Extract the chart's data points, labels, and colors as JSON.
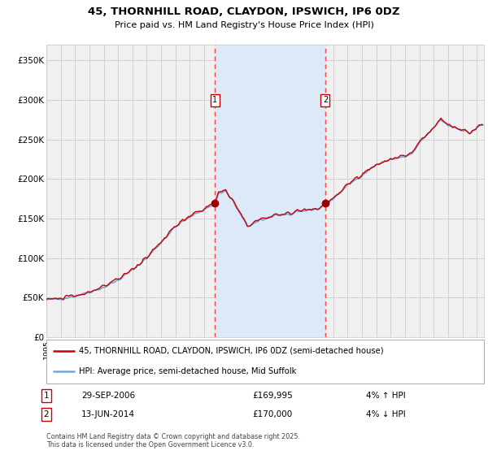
{
  "title": "45, THORNHILL ROAD, CLAYDON, IPSWICH, IP6 0DZ",
  "subtitle": "Price paid vs. HM Land Registry's House Price Index (HPI)",
  "legend_line1": "45, THORNHILL ROAD, CLAYDON, IPSWICH, IP6 0DZ (semi-detached house)",
  "legend_line2": "HPI: Average price, semi-detached house, Mid Suffolk",
  "footnote": "Contains HM Land Registry data © Crown copyright and database right 2025.\nThis data is licensed under the Open Government Licence v3.0.",
  "purchase1_date": "29-SEP-2006",
  "purchase1_price": 169995,
  "purchase1_label": "1",
  "purchase1_note": "4% ↑ HPI",
  "purchase2_date": "13-JUN-2014",
  "purchase2_price": 170000,
  "purchase2_label": "2",
  "purchase2_note": "4% ↓ HPI",
  "hpi_color": "#6fa8dc",
  "price_color": "#cc0000",
  "marker_color": "#990000",
  "vline_color": "#ff4444",
  "shading_color": "#dce9f7",
  "background_color": "#ffffff",
  "grid_color": "#cccccc",
  "chart_bg": "#f0f0f0",
  "ylim": [
    0,
    370000
  ],
  "yticks": [
    0,
    50000,
    100000,
    150000,
    200000,
    250000,
    300000,
    350000
  ],
  "ytick_labels": [
    "£0",
    "£50K",
    "£100K",
    "£150K",
    "£200K",
    "£250K",
    "£300K",
    "£350K"
  ],
  "purchase1_x": 2006.75,
  "purchase2_x": 2014.44,
  "purchase1_y": 169995,
  "purchase2_y": 170000,
  "xmin": 1995,
  "xmax": 2025.5
}
